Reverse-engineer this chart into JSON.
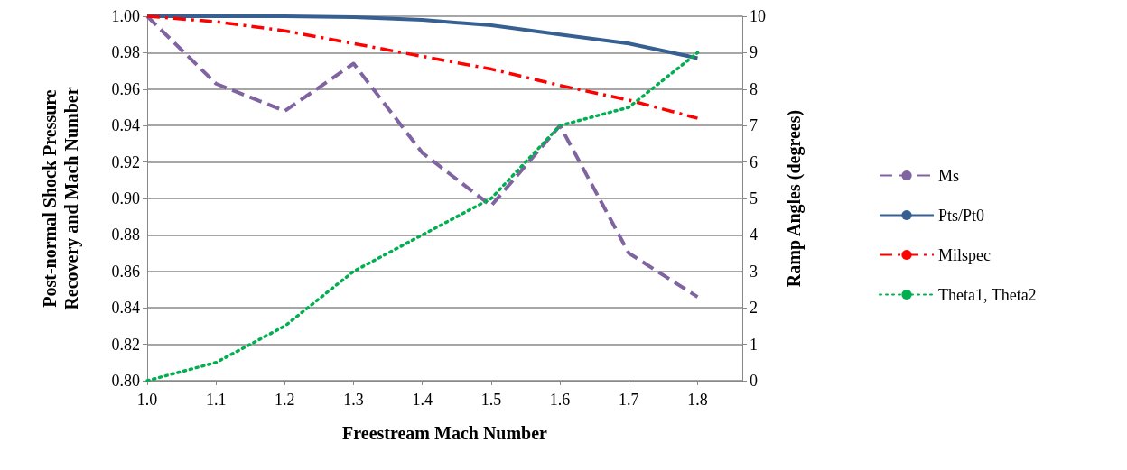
{
  "chart_data": {
    "type": "line",
    "xlabel": "Freestream Mach Number",
    "ylabel": "Post-normal Shock Pressure\nRecovery and Mach Number",
    "y2label": "Ramp Angles (degrees)",
    "x": [
      1.0,
      1.1,
      1.2,
      1.3,
      1.4,
      1.5,
      1.6,
      1.7,
      1.8
    ],
    "xlim": [
      1.0,
      1.865
    ],
    "xticks": [
      {
        "value": 1.0,
        "label": "1.0"
      },
      {
        "value": 1.1,
        "label": "1.1"
      },
      {
        "value": 1.2,
        "label": "1.2"
      },
      {
        "value": 1.3,
        "label": "1.3"
      },
      {
        "value": 1.4,
        "label": "1.4"
      },
      {
        "value": 1.5,
        "label": "1.5"
      },
      {
        "value": 1.6,
        "label": "1.6"
      },
      {
        "value": 1.7,
        "label": "1.7"
      },
      {
        "value": 1.8,
        "label": "1.8"
      }
    ],
    "ylim": [
      0.8,
      1.0
    ],
    "yticks": [
      {
        "value": 0.8,
        "label": "0.80"
      },
      {
        "value": 0.82,
        "label": "0.82"
      },
      {
        "value": 0.84,
        "label": "0.84"
      },
      {
        "value": 0.86,
        "label": "0.86"
      },
      {
        "value": 0.88,
        "label": "0.88"
      },
      {
        "value": 0.9,
        "label": "0.90"
      },
      {
        "value": 0.92,
        "label": "0.92"
      },
      {
        "value": 0.94,
        "label": "0.94"
      },
      {
        "value": 0.96,
        "label": "0.96"
      },
      {
        "value": 0.98,
        "label": "0.98"
      },
      {
        "value": 1.0,
        "label": "1.00"
      }
    ],
    "y2lim": [
      0,
      10
    ],
    "y2ticks": [
      0,
      1,
      2,
      3,
      4,
      5,
      6,
      7,
      8,
      9,
      10
    ],
    "grid": "y",
    "legend": "right",
    "marker": "none",
    "series": [
      {
        "name": "Ms",
        "color": "#8064a2",
        "line_style": "dashed",
        "values": [
          1.0,
          0.963,
          0.948,
          0.974,
          0.925,
          0.896,
          0.94,
          0.87,
          0.846
        ]
      },
      {
        "name": "Pts/Pt0",
        "color": "#376092",
        "line_style": "solid",
        "values": [
          1.0,
          1.0,
          1.0,
          0.9995,
          0.998,
          0.995,
          0.99,
          0.985,
          0.977
        ]
      },
      {
        "name": "Milspec",
        "color": "#ff0000",
        "line_style": "dashdot",
        "values": [
          1.0,
          0.997,
          0.992,
          0.985,
          0.978,
          0.971,
          0.962,
          0.954,
          0.944
        ]
      },
      {
        "name": "Theta1, Theta2",
        "color": "#00b050",
        "line_style": "dotted",
        "axis": "y2",
        "values": [
          0,
          0.5,
          1.5,
          3.0,
          4.0,
          5.0,
          7.0,
          7.5,
          9.0
        ]
      }
    ]
  }
}
